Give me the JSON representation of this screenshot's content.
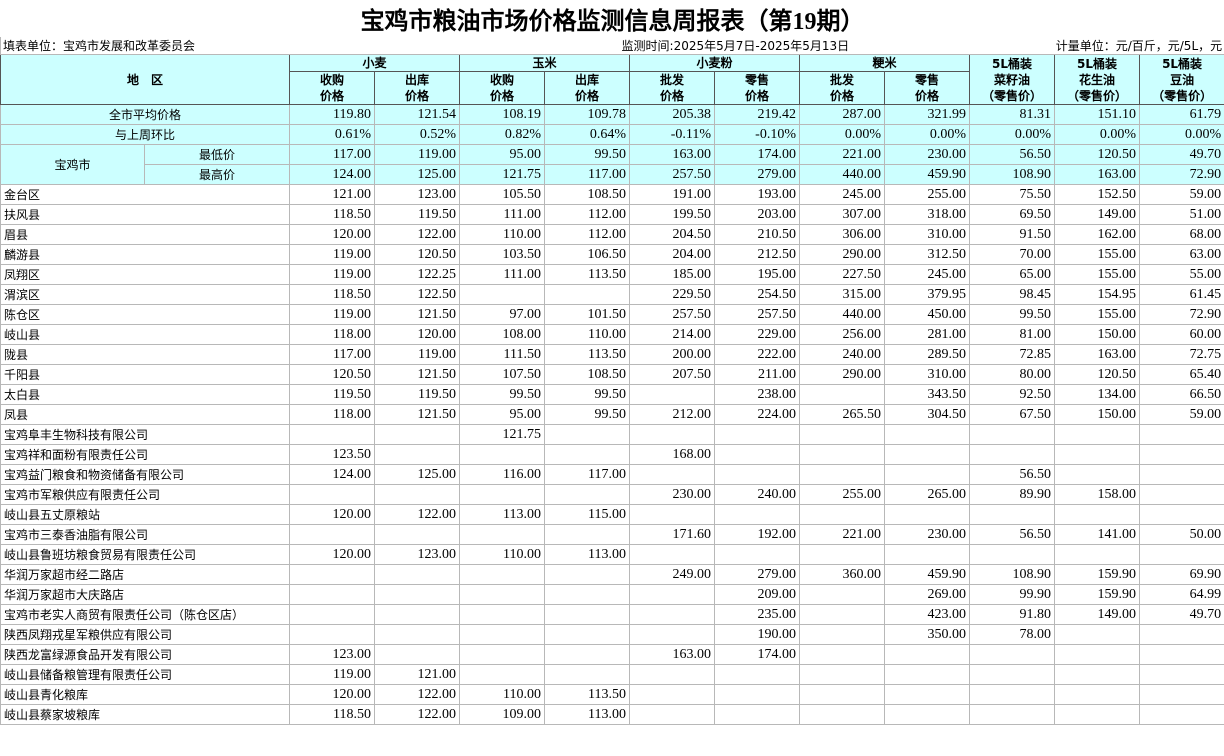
{
  "header": {
    "title": "宝鸡市粮油市场价格监测信息周报表（第19期）",
    "unit_left": "填表单位：宝鸡市发展和改革委员会",
    "period": "监测时间:2025年5月7日-2025年5月13日",
    "unit_right": "计量单位：元/百斤，元/5L，元"
  },
  "columns": {
    "region": "地　区",
    "groups": [
      {
        "name": "小麦",
        "subs": [
          [
            "收购",
            "价格"
          ],
          [
            "出库",
            "价格"
          ]
        ]
      },
      {
        "name": "玉米",
        "subs": [
          [
            "收购",
            "价格"
          ],
          [
            "出库",
            "价格"
          ]
        ]
      },
      {
        "name": "小麦粉",
        "subs": [
          [
            "批发",
            "价格"
          ],
          [
            "零售",
            "价格"
          ]
        ]
      },
      {
        "name": "粳米",
        "subs": [
          [
            "批发",
            "价格"
          ],
          [
            "零售",
            "价格"
          ]
        ]
      }
    ],
    "oil": [
      [
        "5L桶装",
        "菜籽油",
        "（零售价）"
      ],
      [
        "5L桶装",
        "花生油",
        "（零售价）"
      ],
      [
        "5L桶装",
        "豆油",
        "（零售价）"
      ]
    ]
  },
  "summary": {
    "average": {
      "label": "全市平均价格",
      "values": [
        "119.80",
        "121.54",
        "108.19",
        "109.78",
        "205.38",
        "219.42",
        "287.00",
        "321.99",
        "81.31",
        "151.10",
        "61.79"
      ]
    },
    "change": {
      "label": "与上周环比",
      "values": [
        "0.61%",
        "0.52%",
        "0.82%",
        "0.64%",
        "-0.11%",
        "-0.10%",
        "0.00%",
        "0.00%",
        "0.00%",
        "0.00%",
        "0.00%"
      ]
    },
    "city": {
      "label": "宝鸡市",
      "rows": [
        {
          "label": "最低价",
          "values": [
            "117.00",
            "119.00",
            "95.00",
            "99.50",
            "163.00",
            "174.00",
            "221.00",
            "230.00",
            "56.50",
            "120.50",
            "49.70"
          ]
        },
        {
          "label": "最高价",
          "values": [
            "124.00",
            "125.00",
            "121.75",
            "117.00",
            "257.50",
            "279.00",
            "440.00",
            "459.90",
            "108.90",
            "163.00",
            "72.90"
          ]
        }
      ]
    }
  },
  "rows": [
    {
      "label": "金台区",
      "values": [
        "121.00",
        "123.00",
        "105.50",
        "108.50",
        "191.00",
        "193.00",
        "245.00",
        "255.00",
        "75.50",
        "152.50",
        "59.00"
      ]
    },
    {
      "label": "扶风县",
      "values": [
        "118.50",
        "119.50",
        "111.00",
        "112.00",
        "199.50",
        "203.00",
        "307.00",
        "318.00",
        "69.50",
        "149.00",
        "51.00"
      ]
    },
    {
      "label": "眉县",
      "values": [
        "120.00",
        "122.00",
        "110.00",
        "112.00",
        "204.50",
        "210.50",
        "306.00",
        "310.00",
        "91.50",
        "162.00",
        "68.00"
      ]
    },
    {
      "label": "麟游县",
      "values": [
        "119.00",
        "120.50",
        "103.50",
        "106.50",
        "204.00",
        "212.50",
        "290.00",
        "312.50",
        "70.00",
        "155.00",
        "63.00"
      ]
    },
    {
      "label": "凤翔区",
      "values": [
        "119.00",
        "122.25",
        "111.00",
        "113.50",
        "185.00",
        "195.00",
        "227.50",
        "245.00",
        "65.00",
        "155.00",
        "55.00"
      ]
    },
    {
      "label": "渭滨区",
      "values": [
        "118.50",
        "122.50",
        null,
        null,
        "229.50",
        "254.50",
        "315.00",
        "379.95",
        "98.45",
        "154.95",
        "61.45"
      ]
    },
    {
      "label": "陈仓区",
      "values": [
        "119.00",
        "121.50",
        "97.00",
        "101.50",
        "257.50",
        "257.50",
        "440.00",
        "450.00",
        "99.50",
        "155.00",
        "72.90"
      ]
    },
    {
      "label": "岐山县",
      "values": [
        "118.00",
        "120.00",
        "108.00",
        "110.00",
        "214.00",
        "229.00",
        "256.00",
        "281.00",
        "81.00",
        "150.00",
        "60.00"
      ]
    },
    {
      "label": "陇县",
      "values": [
        "117.00",
        "119.00",
        "111.50",
        "113.50",
        "200.00",
        "222.00",
        "240.00",
        "289.50",
        "72.85",
        "163.00",
        "72.75"
      ]
    },
    {
      "label": "千阳县",
      "values": [
        "120.50",
        "121.50",
        "107.50",
        "108.50",
        "207.50",
        "211.00",
        "290.00",
        "310.00",
        "80.00",
        "120.50",
        "65.40"
      ]
    },
    {
      "label": "太白县",
      "values": [
        "119.50",
        "119.50",
        "99.50",
        "99.50",
        null,
        "238.00",
        null,
        "343.50",
        "92.50",
        "134.00",
        "66.50"
      ]
    },
    {
      "label": "凤县",
      "values": [
        "118.00",
        "121.50",
        "95.00",
        "99.50",
        "212.00",
        "224.00",
        "265.50",
        "304.50",
        "67.50",
        "150.00",
        "59.00"
      ]
    },
    {
      "label": "宝鸡阜丰生物科技有限公司",
      "values": [
        null,
        null,
        "121.75",
        null,
        null,
        null,
        null,
        null,
        null,
        null,
        null
      ]
    },
    {
      "label": "宝鸡祥和面粉有限责任公司",
      "values": [
        "123.50",
        null,
        null,
        null,
        "168.00",
        null,
        null,
        null,
        null,
        null,
        null
      ]
    },
    {
      "label": "宝鸡益门粮食和物资储备有限公司",
      "values": [
        "124.00",
        "125.00",
        "116.00",
        "117.00",
        null,
        null,
        null,
        null,
        "56.50",
        null,
        null
      ]
    },
    {
      "label": "宝鸡市军粮供应有限责任公司",
      "values": [
        null,
        null,
        null,
        null,
        "230.00",
        "240.00",
        "255.00",
        "265.00",
        "89.90",
        "158.00",
        null
      ]
    },
    {
      "label": "岐山县五丈原粮站",
      "values": [
        "120.00",
        "122.00",
        "113.00",
        "115.00",
        null,
        null,
        null,
        null,
        null,
        null,
        null
      ]
    },
    {
      "label": "宝鸡市三泰香油脂有限公司",
      "values": [
        null,
        null,
        null,
        null,
        "171.60",
        "192.00",
        "221.00",
        "230.00",
        "56.50",
        "141.00",
        "50.00"
      ]
    },
    {
      "label": "岐山县鲁班坊粮食贸易有限责任公司",
      "values": [
        "120.00",
        "123.00",
        "110.00",
        "113.00",
        null,
        null,
        null,
        null,
        null,
        null,
        null
      ]
    },
    {
      "label": "华润万家超市经二路店",
      "values": [
        null,
        null,
        null,
        null,
        "249.00",
        "279.00",
        "360.00",
        "459.90",
        "108.90",
        "159.90",
        "69.90"
      ]
    },
    {
      "label": "华润万家超市大庆路店",
      "values": [
        null,
        null,
        null,
        null,
        null,
        "209.00",
        null,
        "269.00",
        "99.90",
        "159.90",
        "64.99"
      ]
    },
    {
      "label": "宝鸡市老实人商贸有限责任公司（陈仓区店）",
      "values": [
        null,
        null,
        null,
        null,
        null,
        "235.00",
        null,
        "423.00",
        "91.80",
        "149.00",
        "49.70"
      ]
    },
    {
      "label": "陕西凤翔戎星军粮供应有限公司",
      "values": [
        null,
        null,
        null,
        null,
        null,
        "190.00",
        null,
        "350.00",
        "78.00",
        null,
        null
      ]
    },
    {
      "label": "陕西龙富绿源食品开发有限公司",
      "values": [
        "123.00",
        null,
        null,
        null,
        "163.00",
        "174.00",
        null,
        null,
        null,
        null,
        null
      ]
    },
    {
      "label": "岐山县储备粮管理有限责任公司",
      "values": [
        "119.00",
        "121.00",
        null,
        null,
        null,
        null,
        null,
        null,
        null,
        null,
        null
      ]
    },
    {
      "label": "岐山县青化粮库",
      "values": [
        "120.00",
        "122.00",
        "110.00",
        "113.50",
        null,
        null,
        null,
        null,
        null,
        null,
        null
      ]
    },
    {
      "label": "岐山县蔡家坡粮库",
      "values": [
        "118.50",
        "122.00",
        "109.00",
        "113.00",
        null,
        null,
        null,
        null,
        null,
        null,
        null
      ]
    }
  ]
}
